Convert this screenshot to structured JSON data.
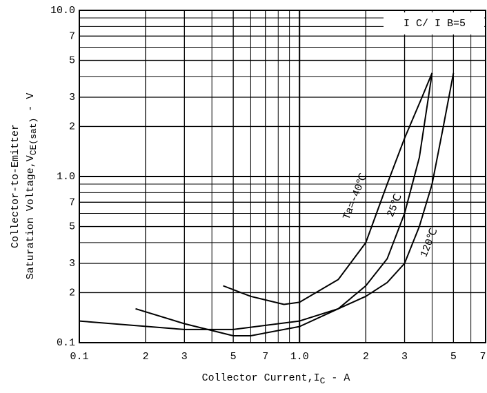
{
  "chart_data": {
    "type": "line",
    "xlabel": {
      "main": "Collector Current,I",
      "sub": "C",
      "tail": " - A"
    },
    "ylabel": {
      "line1": "Collector-to-Emitter",
      "main": "Saturation Voltage,V",
      "sub": "CE(sat)",
      "tail": " - V"
    },
    "annotation": "I C/ I B=5",
    "xlog": true,
    "ylog": true,
    "grid": true,
    "xlim": [
      0.1,
      7
    ],
    "ylim": [
      0.1,
      10
    ],
    "xticks": [
      0.1,
      {
        "value": 0.2,
        "label": "2"
      },
      {
        "value": 0.3,
        "label": "3"
      },
      {
        "value": 0.5,
        "label": "5"
      },
      {
        "value": 0.7,
        "label": "7"
      },
      {
        "value": 1,
        "label": "1.0"
      },
      2,
      3,
      5,
      7
    ],
    "yticks": [
      0.1,
      {
        "value": 0.2,
        "label": "2"
      },
      {
        "value": 0.3,
        "label": "3"
      },
      {
        "value": 0.5,
        "label": "5"
      },
      {
        "value": 0.7,
        "label": "7"
      },
      {
        "value": 1,
        "label": "1.0"
      },
      2,
      3,
      5,
      7,
      {
        "value": 10,
        "label": "10.0"
      }
    ],
    "xminor": [
      0.4,
      0.6,
      0.8,
      0.9,
      4,
      6
    ],
    "yminor": [
      0.4,
      0.6,
      0.8,
      0.9,
      4,
      6,
      8,
      9
    ],
    "series": [
      {
        "name": "Ta=-40℃",
        "color": "#000000",
        "x": [
          0.45,
          0.6,
          0.85,
          1.0,
          1.5,
          2.0,
          2.5,
          3.0,
          3.6,
          4.0
        ],
        "values": [
          0.22,
          0.19,
          0.17,
          0.175,
          0.24,
          0.4,
          0.9,
          1.7,
          3.0,
          4.2
        ]
      },
      {
        "name": "25℃",
        "color": "#000000",
        "x": [
          0.18,
          0.3,
          0.5,
          0.6,
          1.0,
          1.5,
          2.0,
          2.5,
          3.0,
          3.5,
          4.0
        ],
        "values": [
          0.16,
          0.13,
          0.11,
          0.11,
          0.125,
          0.16,
          0.22,
          0.32,
          0.6,
          1.3,
          4.2
        ]
      },
      {
        "name": "120℃",
        "color": "#000000",
        "x": [
          0.1,
          0.3,
          0.5,
          1.0,
          1.5,
          2.0,
          2.5,
          3.0,
          3.5,
          4.0,
          4.5,
          5.0
        ],
        "values": [
          0.135,
          0.12,
          0.12,
          0.135,
          0.16,
          0.19,
          0.23,
          0.3,
          0.5,
          0.9,
          2.0,
          4.2
        ]
      }
    ]
  }
}
